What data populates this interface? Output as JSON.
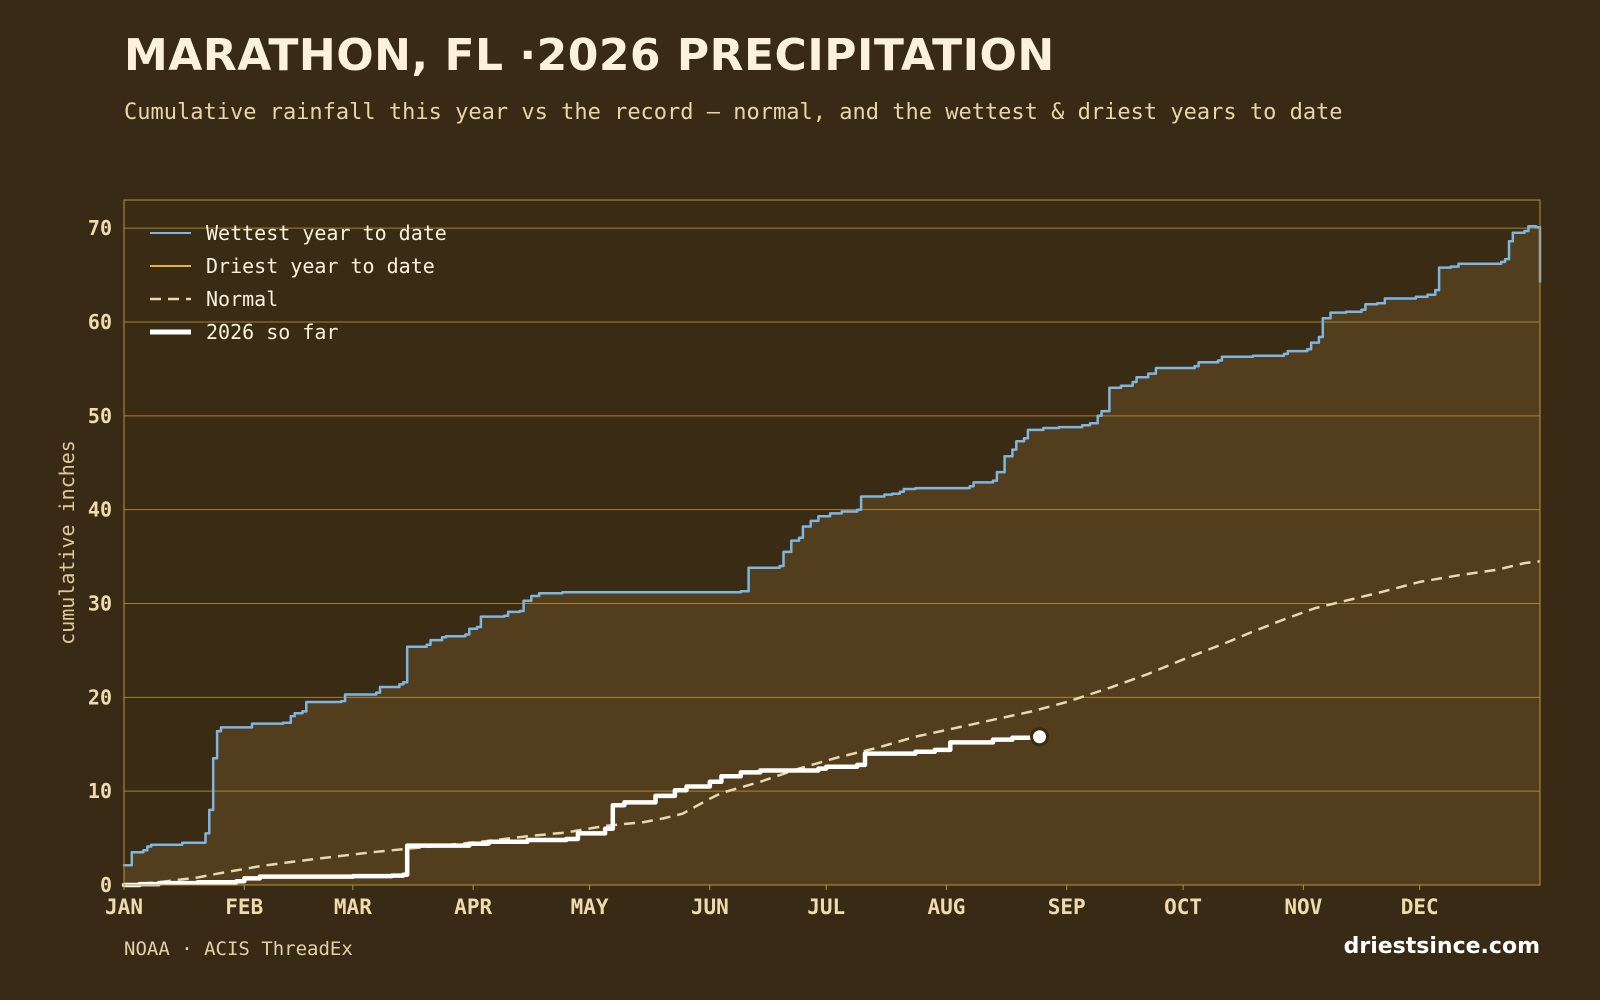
{
  "header": {
    "title": "MARATHON, FL ·2026 PRECIPITATION",
    "subtitle": "Cumulative rainfall this year vs the record — normal, and the wettest & driest years to date"
  },
  "footer": {
    "source": "NOAA · ACIS ThreadEx",
    "brand": "driestsince.com"
  },
  "colors": {
    "background": "#382a14",
    "plot_area": "#3a2b14",
    "fill_under_wettest": "#523e1d",
    "gridline": "#b8923a",
    "wettest": "#7eb6e0",
    "driest": "#e8b23a",
    "normal": "#e8d8b0",
    "current": "#ffffff"
  },
  "chart_data": {
    "type": "line",
    "title": "MARATHON, FL ·2026 PRECIPITATION",
    "xlabel": "",
    "ylabel": "cumulative inches",
    "x_unit": "day of year",
    "xlim": [
      1,
      366
    ],
    "ylim": [
      0,
      73
    ],
    "y_ticks": [
      0,
      10,
      20,
      30,
      40,
      50,
      60,
      70
    ],
    "x_tick_labels": [
      "JAN",
      "FEB",
      "MAR",
      "APR",
      "MAY",
      "JUN",
      "JUL",
      "AUG",
      "SEP",
      "OCT",
      "NOV",
      "DEC"
    ],
    "x_tick_days": [
      1,
      32,
      60,
      91,
      121,
      152,
      182,
      213,
      244,
      274,
      305,
      335
    ],
    "grid": "horizontal",
    "legend_position": "top-left",
    "series": [
      {
        "name": "Wettest year to date",
        "style": "step",
        "fill_below": true,
        "points": [
          [
            1,
            2.1
          ],
          [
            2,
            2.1
          ],
          [
            3,
            3.5
          ],
          [
            6,
            3.7
          ],
          [
            7,
            4.1
          ],
          [
            8,
            4.3
          ],
          [
            15,
            4.3
          ],
          [
            16,
            4.5
          ],
          [
            21,
            4.5
          ],
          [
            22,
            5.5
          ],
          [
            23,
            8
          ],
          [
            24,
            13.5
          ],
          [
            25,
            16.4
          ],
          [
            26,
            16.8
          ],
          [
            33,
            16.8
          ],
          [
            34,
            17.2
          ],
          [
            42,
            17.3
          ],
          [
            44,
            18
          ],
          [
            45,
            18.3
          ],
          [
            47,
            18.5
          ],
          [
            48,
            19.5
          ],
          [
            57,
            19.6
          ],
          [
            58,
            20.3
          ],
          [
            66,
            20.5
          ],
          [
            67,
            21.1
          ],
          [
            72,
            21.4
          ],
          [
            73,
            21.6
          ],
          [
            74,
            25.4
          ],
          [
            79,
            25.6
          ],
          [
            80,
            26.1
          ],
          [
            83,
            26.4
          ],
          [
            84,
            26.5
          ],
          [
            89,
            26.7
          ],
          [
            90,
            27.3
          ],
          [
            92,
            27.5
          ],
          [
            93,
            28.6
          ],
          [
            99,
            28.7
          ],
          [
            100,
            29.1
          ],
          [
            103,
            29.2
          ],
          [
            104,
            30.3
          ],
          [
            106,
            30.8
          ],
          [
            108,
            31.1
          ],
          [
            114,
            31.2
          ],
          [
            160,
            31.3
          ],
          [
            162,
            33.8
          ],
          [
            170,
            34
          ],
          [
            171,
            35.5
          ],
          [
            173,
            36.7
          ],
          [
            175,
            37
          ],
          [
            176,
            38.2
          ],
          [
            178,
            38.8
          ],
          [
            180,
            39.3
          ],
          [
            183,
            39.6
          ],
          [
            186,
            39.8
          ],
          [
            190,
            40
          ],
          [
            191,
            41.4
          ],
          [
            197,
            41.6
          ],
          [
            199,
            41.7
          ],
          [
            201,
            41.9
          ],
          [
            202,
            42.2
          ],
          [
            205,
            42.3
          ],
          [
            219,
            42.5
          ],
          [
            220,
            42.9
          ],
          [
            225,
            43.1
          ],
          [
            226,
            44
          ],
          [
            228,
            45.7
          ],
          [
            230,
            46.4
          ],
          [
            231,
            47.3
          ],
          [
            233,
            47.6
          ],
          [
            234,
            48.5
          ],
          [
            238,
            48.7
          ],
          [
            242,
            48.8
          ],
          [
            248,
            49
          ],
          [
            250,
            49.2
          ],
          [
            252,
            50
          ],
          [
            253,
            50.5
          ],
          [
            255,
            53
          ],
          [
            258,
            53.2
          ],
          [
            261,
            53.6
          ],
          [
            262,
            54.1
          ],
          [
            265,
            54.5
          ],
          [
            267,
            55.1
          ],
          [
            277,
            55.3
          ],
          [
            278,
            55.7
          ],
          [
            283,
            55.9
          ],
          [
            284,
            56.3
          ],
          [
            292,
            56.4
          ],
          [
            300,
            56.6
          ],
          [
            301,
            56.9
          ],
          [
            306,
            57.1
          ],
          [
            307,
            57.8
          ],
          [
            309,
            58.4
          ],
          [
            310,
            60.4
          ],
          [
            312,
            61
          ],
          [
            316,
            61.1
          ],
          [
            320,
            61.3
          ],
          [
            321,
            61.9
          ],
          [
            324,
            62
          ],
          [
            326,
            62.5
          ],
          [
            334,
            62.7
          ],
          [
            337,
            62.9
          ],
          [
            339,
            63.4
          ],
          [
            340,
            65.8
          ],
          [
            343,
            65.9
          ],
          [
            345,
            66.2
          ],
          [
            356,
            66.4
          ],
          [
            357,
            66.7
          ],
          [
            358,
            68.6
          ],
          [
            359,
            69.5
          ],
          [
            362,
            69.7
          ],
          [
            363,
            70.2
          ],
          [
            365,
            70.1
          ],
          [
            366,
            64.3
          ]
        ]
      },
      {
        "name": "Driest year to date",
        "style": "step",
        "points": []
      },
      {
        "name": "Normal",
        "style": "dashed",
        "points": [
          [
            1,
            0
          ],
          [
            10,
            0.3
          ],
          [
            20,
            0.8
          ],
          [
            25,
            1.2
          ],
          [
            32,
            1.7
          ],
          [
            36,
            2
          ],
          [
            45,
            2.5
          ],
          [
            55,
            3
          ],
          [
            65,
            3.5
          ],
          [
            75,
            3.9
          ],
          [
            85,
            4.3
          ],
          [
            95,
            4.7
          ],
          [
            105,
            5.2
          ],
          [
            115,
            5.6
          ],
          [
            125,
            6.3
          ],
          [
            135,
            6.7
          ],
          [
            140,
            7.1
          ],
          [
            145,
            7.6
          ],
          [
            152,
            9.2
          ],
          [
            155,
            9.8
          ],
          [
            165,
            11
          ],
          [
            175,
            12.4
          ],
          [
            185,
            13.6
          ],
          [
            195,
            14.6
          ],
          [
            205,
            15.8
          ],
          [
            215,
            16.7
          ],
          [
            225,
            17.6
          ],
          [
            235,
            18.5
          ],
          [
            244,
            19.5
          ],
          [
            255,
            21
          ],
          [
            265,
            22.5
          ],
          [
            275,
            24.2
          ],
          [
            285,
            25.8
          ],
          [
            292,
            27
          ],
          [
            300,
            28.3
          ],
          [
            308,
            29.5
          ],
          [
            315,
            30.2
          ],
          [
            325,
            31.2
          ],
          [
            335,
            32.3
          ],
          [
            345,
            33
          ],
          [
            355,
            33.6
          ],
          [
            362,
            34.3
          ],
          [
            366,
            34.5
          ]
        ]
      },
      {
        "name": "2026 so far",
        "style": "step",
        "points": [
          [
            1,
            0
          ],
          [
            5,
            0.1
          ],
          [
            10,
            0.2
          ],
          [
            20,
            0.3
          ],
          [
            30,
            0.4
          ],
          [
            32,
            0.7
          ],
          [
            36,
            0.9
          ],
          [
            60,
            0.95
          ],
          [
            70,
            1.0
          ],
          [
            73,
            1.1
          ],
          [
            74,
            4.2
          ],
          [
            90,
            4.4
          ],
          [
            95,
            4.6
          ],
          [
            105,
            4.8
          ],
          [
            115,
            4.9
          ],
          [
            118,
            5.5
          ],
          [
            125,
            6
          ],
          [
            127,
            8.5
          ],
          [
            130,
            8.8
          ],
          [
            138,
            9.5
          ],
          [
            143,
            10.1
          ],
          [
            146,
            10.5
          ],
          [
            152,
            11
          ],
          [
            155,
            11.6
          ],
          [
            160,
            12
          ],
          [
            165,
            12.2
          ],
          [
            180,
            12.4
          ],
          [
            182,
            12.6
          ],
          [
            190,
            12.8
          ],
          [
            192,
            14
          ],
          [
            205,
            14.2
          ],
          [
            210,
            14.4
          ],
          [
            214,
            15.2
          ],
          [
            225,
            15.5
          ],
          [
            230,
            15.7
          ],
          [
            237,
            15.8
          ]
        ],
        "current": {
          "day": 237,
          "value": 15.8
        }
      }
    ]
  }
}
